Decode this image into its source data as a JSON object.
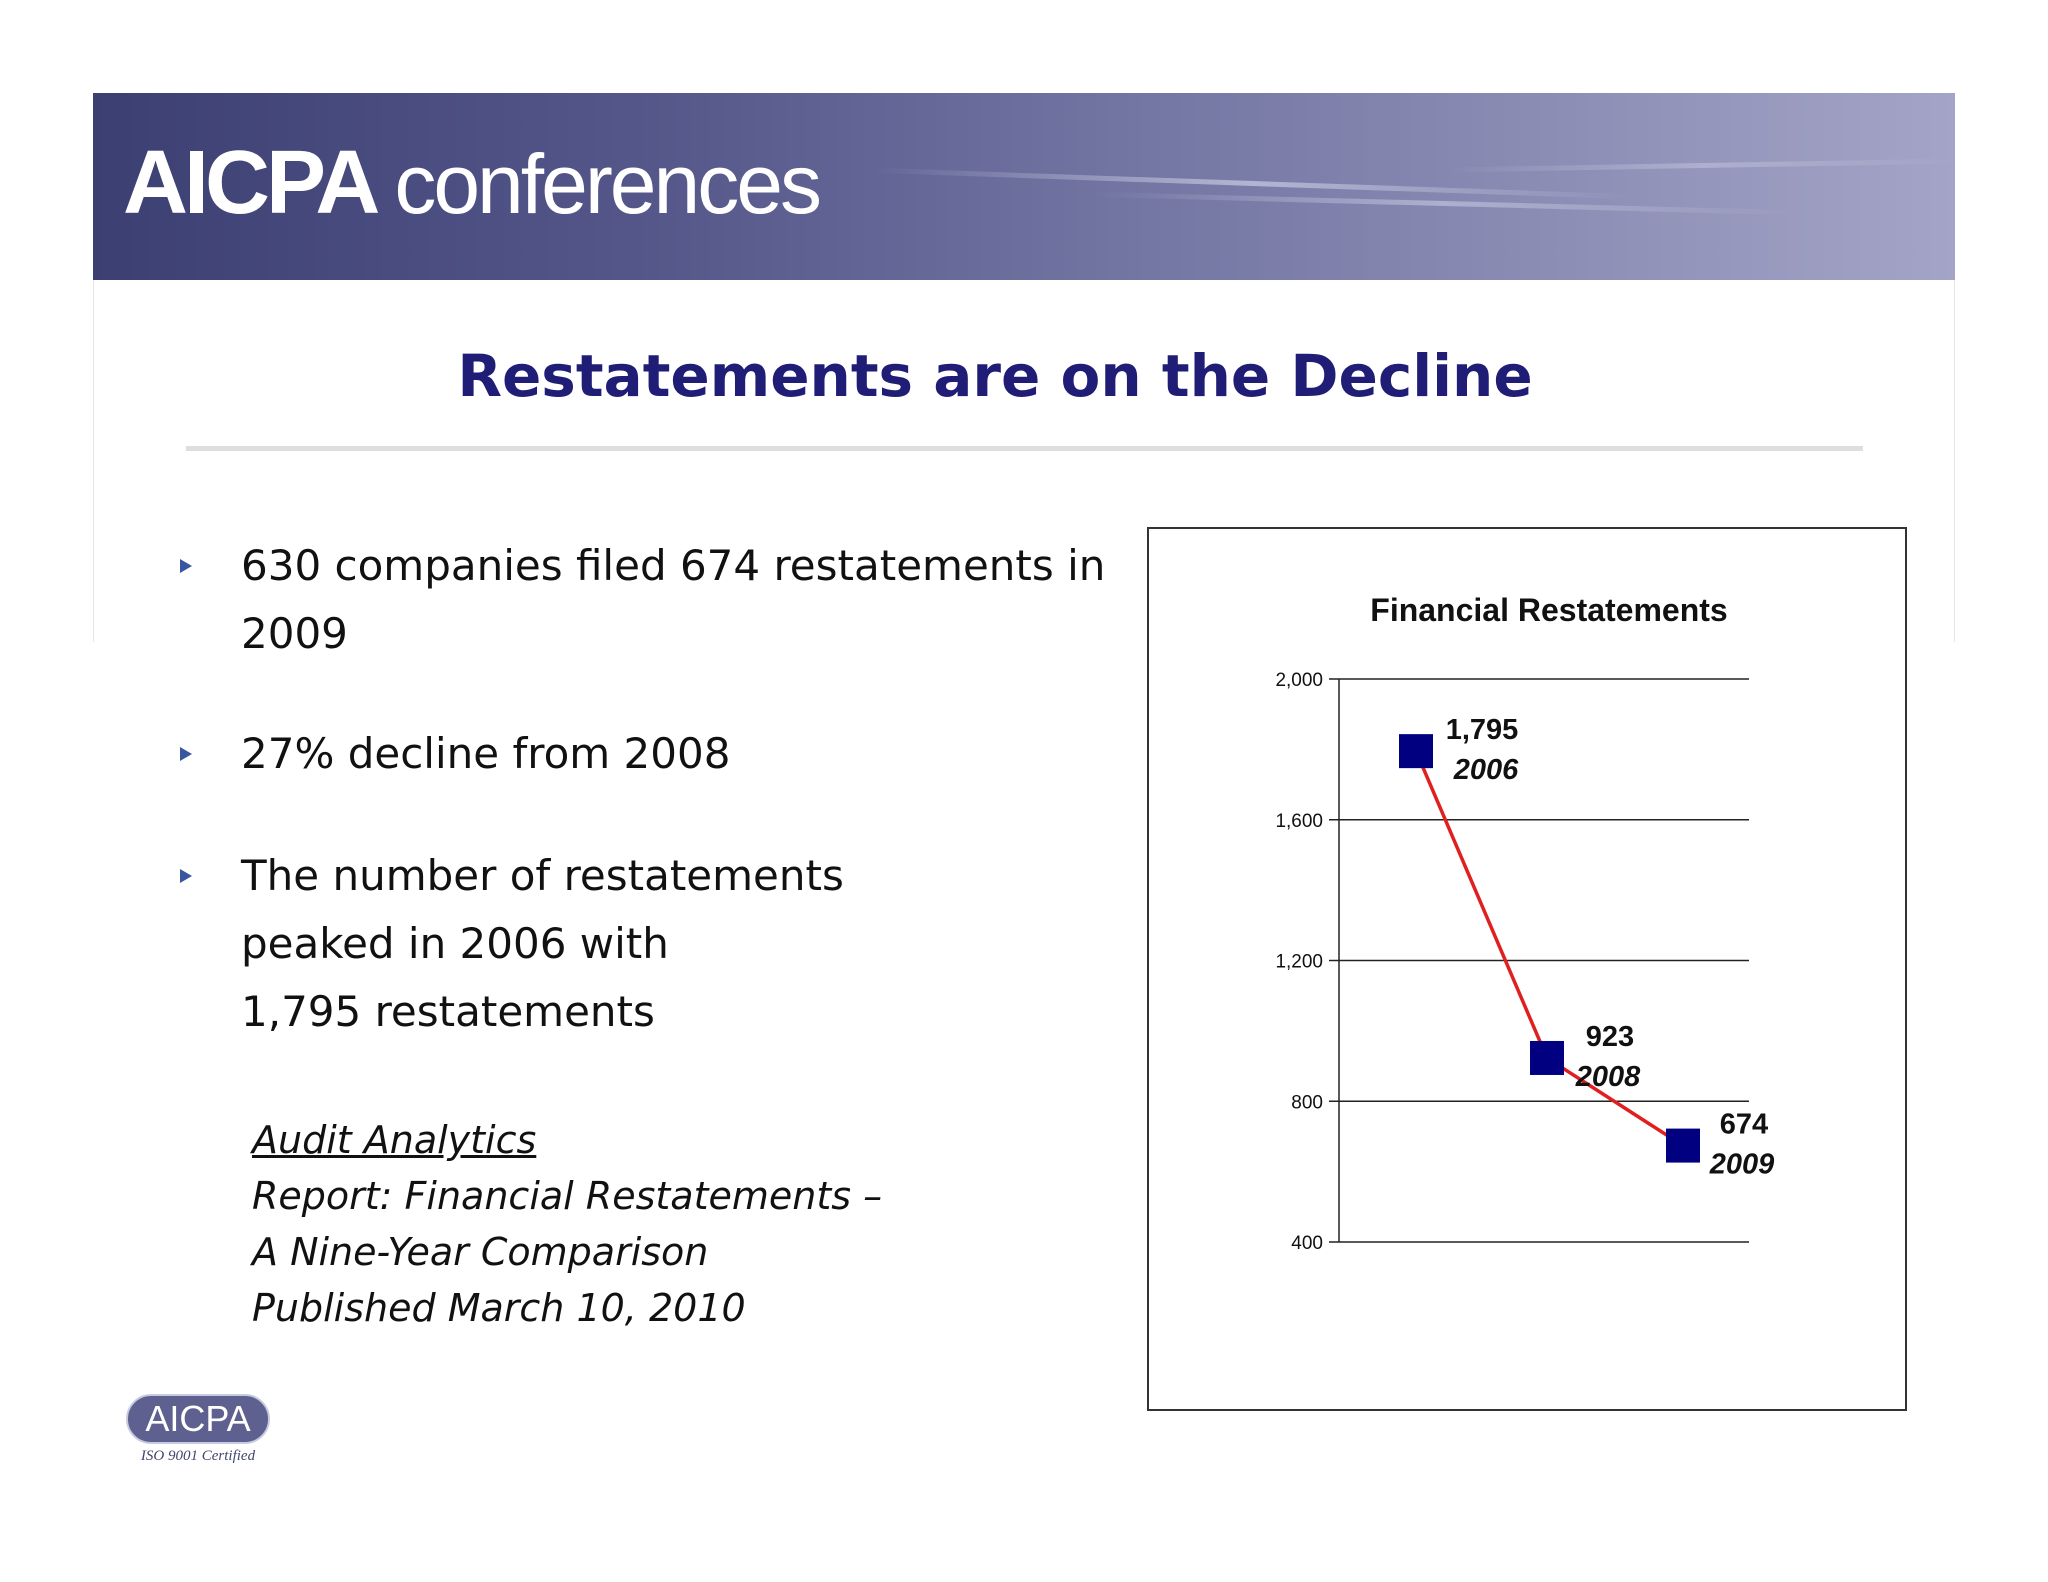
{
  "header": {
    "brand_strong": "AICPA",
    "brand_light": "conferences"
  },
  "slide": {
    "title": "Restatements are on the Decline",
    "bullets": [
      {
        "lines": [
          "630 companies filed 674 restatements in",
          "2009"
        ]
      },
      {
        "lines": [
          "27% decline from 2008"
        ]
      },
      {
        "lines": [
          "The number of restatements",
          "peaked in 2006 with",
          "1,795 restatements"
        ]
      }
    ],
    "citation": {
      "source": "Audit Analytics",
      "lines": [
        "Report: Financial Restatements –",
        "A Nine-Year Comparison",
        "Published March 10, 2010"
      ]
    }
  },
  "footer_logo": {
    "name": "AICPA",
    "certification": "ISO 9001 Certified"
  },
  "colors": {
    "title": "#1f1d75",
    "banner_start": "#3c3f72",
    "banner_end": "#a3a4c6",
    "marker": "#000080",
    "line": "#e02020",
    "bullet": "#3a56a0"
  },
  "chart_data": {
    "type": "line",
    "title": "Financial Restatements",
    "xlabel": "",
    "ylabel": "",
    "ylim": [
      400,
      2000
    ],
    "yticks": [
      400,
      800,
      1200,
      1600,
      2000
    ],
    "ytick_labels": [
      "400",
      "800",
      "1,200",
      "1,600",
      "2,000"
    ],
    "grid": true,
    "legend": "none",
    "series": [
      {
        "points": [
          {
            "x": "2006",
            "y": 1795,
            "value_label": "1,795",
            "year_label": "2006"
          },
          {
            "x": "2008",
            "y": 923,
            "value_label": "923",
            "year_label": "2008"
          },
          {
            "x": "2009",
            "y": 674,
            "value_label": "674",
            "year_label": "2009"
          }
        ]
      }
    ]
  }
}
